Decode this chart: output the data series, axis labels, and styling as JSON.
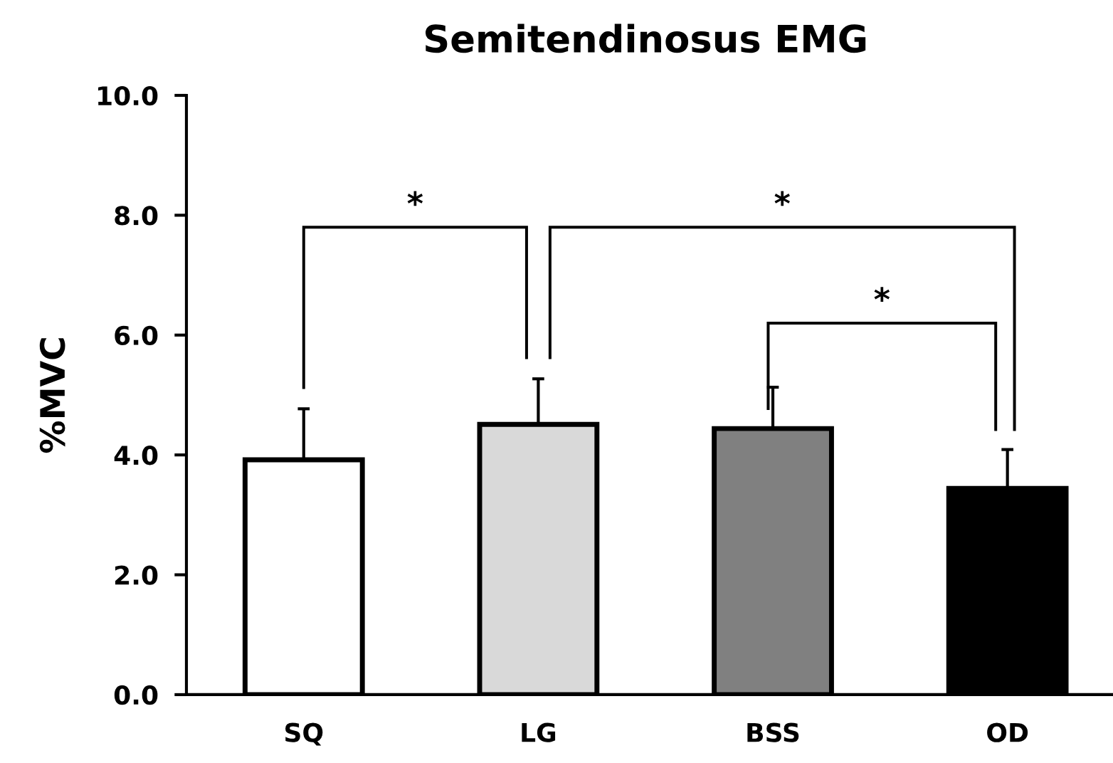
{
  "chart_data": {
    "type": "bar",
    "title": "Semitendinosus EMG",
    "ylabel": "%MVC",
    "categories": [
      "SQ",
      "LG",
      "BSS",
      "OD"
    ],
    "values": [
      3.92,
      4.51,
      4.44,
      3.44
    ],
    "errors": [
      [
        3.92,
        4.77
      ],
      [
        4.51,
        5.27
      ],
      [
        4.44,
        5.13
      ],
      [
        3.44,
        4.09
      ]
    ],
    "colors": [
      "#ffffff",
      "#d9d9d9",
      "#808080",
      "#000000"
    ],
    "ylim": [
      0,
      10
    ],
    "yticks": [
      {
        "value": 0,
        "label": "0.0"
      },
      {
        "value": 2,
        "label": "2.0"
      },
      {
        "value": 4,
        "label": "4.0"
      },
      {
        "value": 6,
        "label": "6.0"
      },
      {
        "value": 8,
        "label": "8.0"
      },
      {
        "value": 10,
        "label": "10.0"
      }
    ],
    "annotations": [
      "*",
      "*",
      "*"
    ],
    "grid": false,
    "legend": false
  }
}
